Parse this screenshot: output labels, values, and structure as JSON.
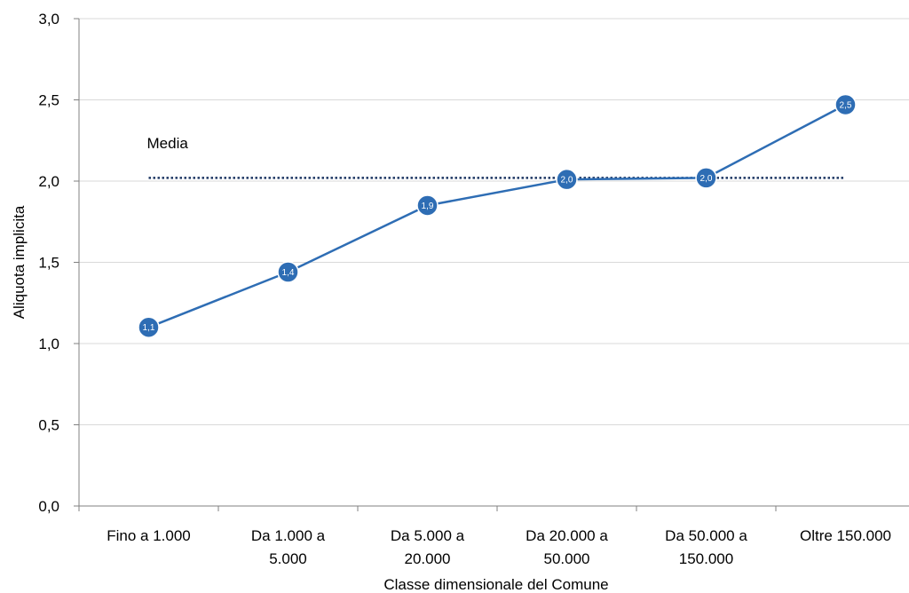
{
  "chart_data": {
    "type": "line",
    "xlabel": "Classe dimensionale del Comune",
    "ylabel": "Aliquota implicita",
    "ylim": [
      0,
      3
    ],
    "y_ticks": [
      "0,0",
      "0,5",
      "1,0",
      "1,5",
      "2,0",
      "2,5",
      "3,0"
    ],
    "y_tick_values": [
      0,
      0.5,
      1,
      1.5,
      2,
      2.5,
      3
    ],
    "grid": true,
    "categories": [
      [
        "Fino a 1.000"
      ],
      [
        "Da 1.000 a",
        "5.000"
      ],
      [
        "Da 5.000 a",
        "20.000"
      ],
      [
        "Da 20.000 a",
        "50.000"
      ],
      [
        "Da 50.000 a",
        "150.000"
      ],
      [
        "Oltre 150.000"
      ]
    ],
    "series": [
      {
        "values": [
          1.1,
          1.44,
          1.85,
          2.01,
          2.02,
          2.47
        ],
        "data_labels": [
          "1,1",
          "1,4",
          "1,9",
          "2,0",
          "2,0",
          "2,5"
        ],
        "color": "#2E6DB4",
        "marker_color": "#2E6DB4"
      }
    ],
    "reference_line": {
      "label": "Media",
      "value": 2.02,
      "color": "#1F3864",
      "style": "dotted"
    }
  }
}
